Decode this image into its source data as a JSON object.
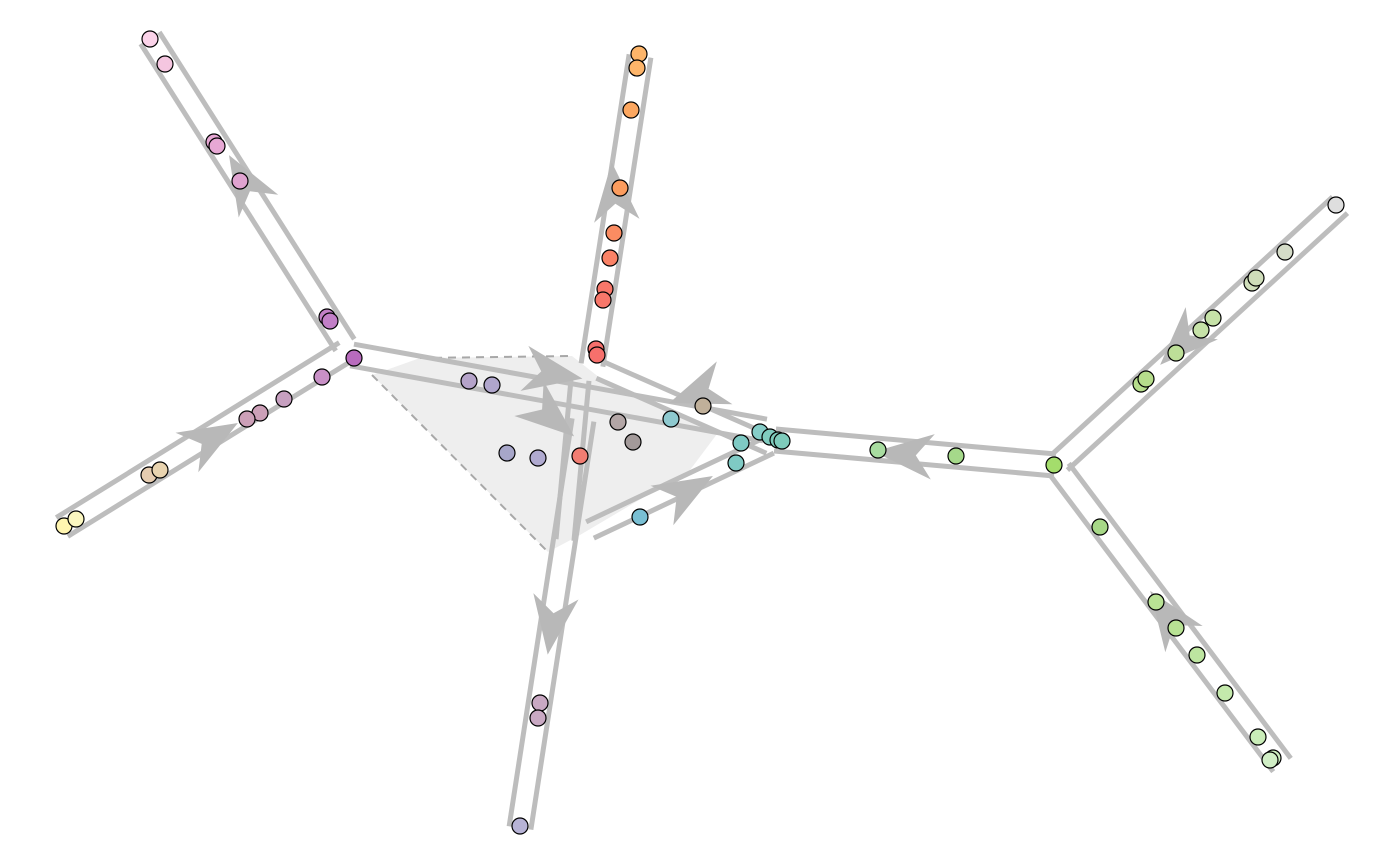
{
  "diagram": {
    "type": "trajectory-graph",
    "style": {
      "edge_color": "#bdbdbd",
      "arrow_color": "#b8b8b8",
      "shaded_region_color": "#eeeeee",
      "dash_color": "#a8a8a8",
      "point_outline": "#000000"
    },
    "branches": [
      {
        "id": "upper-left",
        "label": ""
      },
      {
        "id": "left",
        "label": ""
      },
      {
        "id": "top",
        "label": ""
      },
      {
        "id": "bottom",
        "label": ""
      },
      {
        "id": "upper-right",
        "label": ""
      },
      {
        "id": "lower-right",
        "label": ""
      },
      {
        "id": "center",
        "label": ""
      }
    ],
    "points": [
      {
        "color": "#fbd3e9"
      },
      {
        "color": "#f5c6e0"
      },
      {
        "color": "#e7a8d4"
      },
      {
        "color": "#e7a8d4"
      },
      {
        "color": "#e0a3d0"
      },
      {
        "color": "#c27fc7"
      },
      {
        "color": "#c27fc7"
      },
      {
        "color": "#b86bbd"
      },
      {
        "color": "#c890c6"
      },
      {
        "color": "#c7a0c0"
      },
      {
        "color": "#cca0b8"
      },
      {
        "color": "#cca0b8"
      },
      {
        "color": "#e6ccb0"
      },
      {
        "color": "#e9d4b0"
      },
      {
        "color": "#fff5b0"
      },
      {
        "color": "#fbf7c0"
      },
      {
        "color": "#fdb56a"
      },
      {
        "color": "#fdb56a"
      },
      {
        "color": "#fca760"
      },
      {
        "color": "#fb9c5e"
      },
      {
        "color": "#fa8c62"
      },
      {
        "color": "#fa8266"
      },
      {
        "color": "#f8776a"
      },
      {
        "color": "#f8776a"
      },
      {
        "color": "#f6706c"
      },
      {
        "color": "#f6706c"
      },
      {
        "color": "#b5a3c9"
      },
      {
        "color": "#b0a6cc"
      },
      {
        "color": "#a7a6c9"
      },
      {
        "color": "#b0aad0"
      },
      {
        "color": "#f17d72"
      },
      {
        "color": "#b3a6a6"
      },
      {
        "color": "#a39a9a"
      },
      {
        "color": "#c0b09a"
      },
      {
        "color": "#8ec9cf"
      },
      {
        "color": "#86cdc8"
      },
      {
        "color": "#80cbbf"
      },
      {
        "color": "#7ecbbb"
      },
      {
        "color": "#7ecbbb"
      },
      {
        "color": "#7fcac4"
      },
      {
        "color": "#7fcac4"
      },
      {
        "color": "#79bfd3"
      },
      {
        "color": "#a8dca0"
      },
      {
        "color": "#a5d98a"
      },
      {
        "color": "#a4dd6c"
      },
      {
        "color": "#b6dd8c"
      },
      {
        "color": "#b6dd8c"
      },
      {
        "color": "#bddf98"
      },
      {
        "color": "#c6e2a8"
      },
      {
        "color": "#c6e2a8"
      },
      {
        "color": "#cfddba"
      },
      {
        "color": "#cfddba"
      },
      {
        "color": "#d5dcc8"
      },
      {
        "color": "#dedede"
      },
      {
        "color": "#a7d887"
      },
      {
        "color": "#b8e294"
      },
      {
        "color": "#b8e294"
      },
      {
        "color": "#bde5a0"
      },
      {
        "color": "#c4e9ac"
      },
      {
        "color": "#c9ecb8"
      },
      {
        "color": "#cdeec0"
      },
      {
        "color": "#d1efc6"
      },
      {
        "color": "#c9a9c3"
      },
      {
        "color": "#c9a9c3"
      },
      {
        "color": "#b7b3d6"
      }
    ]
  }
}
